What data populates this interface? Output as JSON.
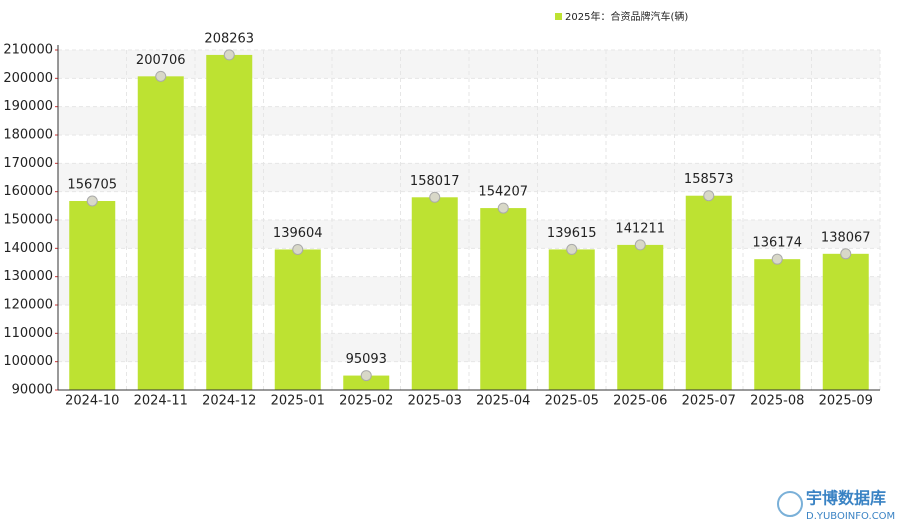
{
  "chart_data": {
    "type": "bar",
    "legend": "2025年：合资品牌汽车(辆)",
    "categories": [
      "2024-10",
      "2024-11",
      "2024-12",
      "2025-01",
      "2025-02",
      "2025-03",
      "2025-04",
      "2025-05",
      "2025-06",
      "2025-07",
      "2025-08",
      "2025-09"
    ],
    "values": [
      156705,
      200706,
      208263,
      139604,
      95093,
      158017,
      154207,
      139615,
      141211,
      158573,
      136174,
      138067
    ],
    "color": "#bde232",
    "ylim": [
      90000,
      210000
    ],
    "yticks": [
      90000,
      100000,
      110000,
      120000,
      130000,
      140000,
      150000,
      160000,
      170000,
      180000,
      190000,
      200000,
      210000
    ],
    "grid": true,
    "legend_position": "top",
    "watermark": "宇博数据库",
    "watermark_url": "D.YUBOINFO.COM"
  }
}
